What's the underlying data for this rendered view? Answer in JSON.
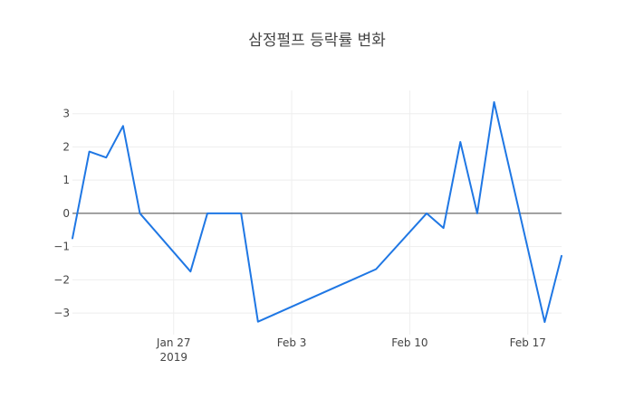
{
  "chart_data": {
    "type": "line",
    "title": "삼정펄프 등락률 변화",
    "xlabel": "",
    "ylabel": "",
    "x": [
      "2019-01-21",
      "2019-01-22",
      "2019-01-23",
      "2019-01-24",
      "2019-01-25",
      "2019-01-28",
      "2019-01-29",
      "2019-01-30",
      "2019-01-31",
      "2019-02-01",
      "2019-02-08",
      "2019-02-11",
      "2019-02-12",
      "2019-02-13",
      "2019-02-14",
      "2019-02-15",
      "2019-02-18",
      "2019-02-19"
    ],
    "series": [
      {
        "values": [
          -0.75,
          1.86,
          1.68,
          2.63,
          0.0,
          -1.75,
          0.0,
          0.0,
          0.0,
          -3.26,
          -1.68,
          0.0,
          -0.44,
          2.15,
          0.0,
          3.35,
          -3.27,
          -1.28
        ],
        "color": "#1f77e4"
      }
    ],
    "xlim": [
      "2019-01-21",
      "2019-02-19"
    ],
    "ylim": [
      -3.65,
      3.7
    ],
    "x_ticks": [
      {
        "date": "2019-01-27",
        "label": "Jan 27",
        "sublabel": "2019"
      },
      {
        "date": "2019-02-03",
        "label": "Feb 3",
        "sublabel": ""
      },
      {
        "date": "2019-02-10",
        "label": "Feb 10",
        "sublabel": ""
      },
      {
        "date": "2019-02-17",
        "label": "Feb 17",
        "sublabel": ""
      }
    ],
    "y_ticks": [
      3,
      2,
      1,
      0,
      -1,
      -2,
      -3
    ],
    "zero_line": true,
    "grid": true
  }
}
